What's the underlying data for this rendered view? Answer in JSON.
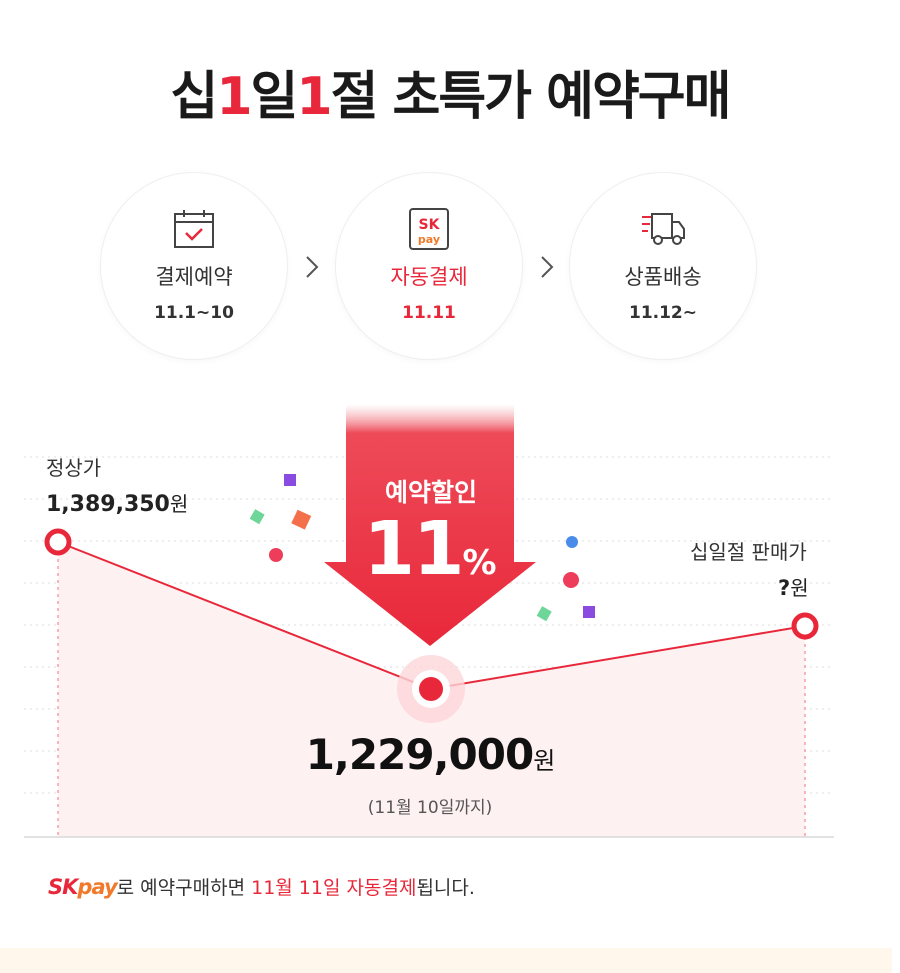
{
  "title": {
    "part1": "십",
    "one1": "1",
    "part2": "일",
    "one2": "1",
    "part3": "절 초특가 예약구매"
  },
  "steps": [
    {
      "label": "결제예약",
      "date": "11.1~10",
      "icon": "calendar-check-icon"
    },
    {
      "label": "자동결제",
      "date": "11.11",
      "icon": "sk-pay-icon",
      "icon_text_top": "SK",
      "icon_text_bottom": "pay"
    },
    {
      "label": "상품배송",
      "date": "11.12~",
      "icon": "delivery-truck-icon"
    }
  ],
  "chart": {
    "regular_label": "정상가",
    "regular_price": "1,389,350",
    "sale_label": "십일절 판매가",
    "sale_price": "?",
    "won": "원",
    "discount_label": "예약할인",
    "discount_value": "11",
    "discount_unit": "%",
    "preorder_price": "1,229,000",
    "preorder_until": "(11월 10일까지)"
  },
  "notice": {
    "sk": "SK",
    "pay": "pay",
    "text1": "로 예약구매하면 ",
    "highlight": "11월 11일 자동결제",
    "text2": "됩니다."
  },
  "colors": {
    "accent": "#e8283a",
    "orange": "#f07a2a",
    "bottom_bar": "#fff6ec"
  }
}
